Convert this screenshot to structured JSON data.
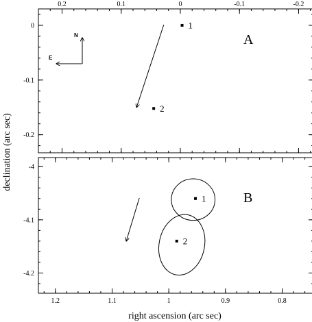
{
  "chart_data": [
    {
      "type": "scatter",
      "panel": "A",
      "xlabel": "",
      "ylabel": "",
      "xlim": [
        0.24,
        -0.225
      ],
      "ylim": [
        -0.233,
        0.03
      ],
      "x_ticks": [
        "0.2",
        "0.1",
        "0",
        "-0.1",
        "-0.2"
      ],
      "x_tick_values": [
        0.2,
        0.1,
        0.0,
        -0.1,
        -0.2
      ],
      "y_ticks": [
        "0",
        "-0.1",
        "-0.2"
      ],
      "y_tick_values": [
        0.0,
        -0.1,
        -0.2
      ],
      "x_tick_position": "top",
      "points": [
        {
          "label": "1",
          "x": -0.003,
          "y": 0.0
        },
        {
          "label": "2",
          "x": 0.045,
          "y": -0.152
        }
      ],
      "arrows": [
        {
          "x1": 0.028,
          "y1": 0.001,
          "x2": 0.074,
          "y2": -0.15
        }
      ],
      "compass": {
        "north": "N",
        "east": "E"
      }
    },
    {
      "type": "scatter",
      "panel": "B",
      "xlabel": "right ascension (arc sec)",
      "ylabel": "declination (arc sec)",
      "xlim": [
        1.23,
        0.745
      ],
      "ylim": [
        -4.238,
        -3.983
      ],
      "x_ticks": [
        "1.2",
        "1.1",
        "1",
        "0.9",
        "0.8"
      ],
      "x_tick_values": [
        1.2,
        1.1,
        1.0,
        0.9,
        0.8
      ],
      "y_ticks": [
        "-4",
        "-4.1",
        "-4.2"
      ],
      "y_tick_values": [
        -4.0,
        -4.1,
        -4.2
      ],
      "points": [
        {
          "label": "1",
          "x": 0.953,
          "y": -4.06
        },
        {
          "label": "2",
          "x": 0.986,
          "y": -4.14
        }
      ],
      "error_ellipses": [
        {
          "cx": 0.957,
          "cy": -4.062,
          "rx": 0.0385,
          "ry": 0.039,
          "rotate": 0
        },
        {
          "cx": 0.977,
          "cy": -4.147,
          "rx": 0.04,
          "ry": 0.0575,
          "rotate": 12
        }
      ],
      "arrows": [
        {
          "x1": 1.052,
          "y1": -4.059,
          "x2": 1.075,
          "y2": -4.14
        }
      ]
    }
  ],
  "panels": {
    "A": "A",
    "B": "B"
  }
}
